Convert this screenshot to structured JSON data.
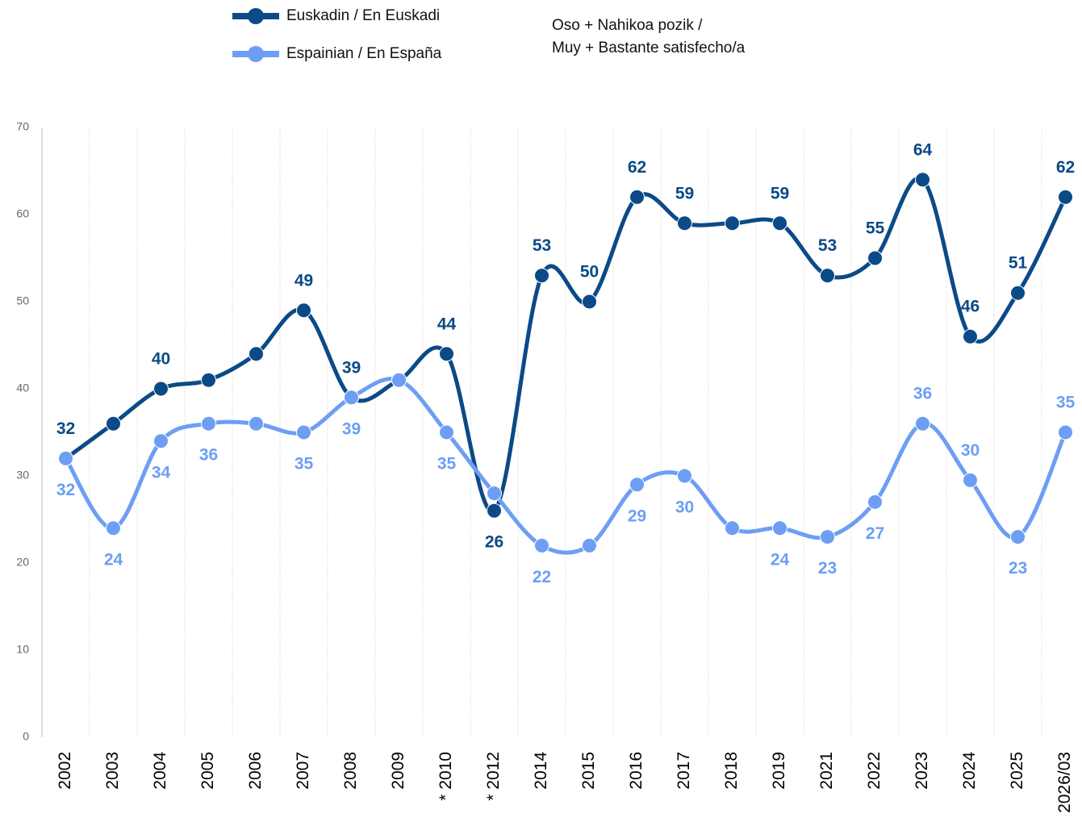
{
  "chart_data": {
    "type": "line",
    "subtitle": [
      "Oso + Nahikoa pozik /",
      "Muy + Bastante satisfecho/a"
    ],
    "categories": [
      "2002",
      "2003",
      "2004",
      "2005",
      "2006",
      "2007",
      "2008",
      "2009",
      "* 2010",
      "* 2012",
      "2014",
      "2015",
      "2016",
      "2017",
      "2018",
      "2019",
      "2021",
      "2022",
      "2023",
      "2024",
      "2025",
      "2026/03"
    ],
    "series": [
      {
        "name": "Euskadin / En Euskadi",
        "color": "#0b4a86",
        "values": [
          32,
          36,
          40,
          41,
          44,
          49,
          39,
          41,
          44,
          26,
          53,
          50,
          62,
          59,
          59,
          59,
          53,
          55,
          64,
          46,
          51,
          62
        ],
        "value_labels": [
          "32",
          null,
          "40",
          null,
          null,
          "49",
          "39",
          null,
          "44",
          "26",
          "53",
          "50",
          "62",
          "59",
          null,
          "59",
          "53",
          "55",
          "64",
          "46",
          "51",
          "62"
        ]
      },
      {
        "name": "Espainian / En España",
        "color": "#6d9ef4",
        "values": [
          32,
          24,
          34,
          36,
          36,
          35,
          39,
          41,
          35,
          28,
          22,
          22,
          29,
          30,
          24,
          24,
          23,
          27,
          36,
          29.5,
          23,
          35
        ],
        "value_labels": [
          "32",
          "24",
          "34",
          "36",
          null,
          "35",
          "39",
          null,
          "35",
          null,
          "22",
          null,
          "29",
          "30",
          null,
          "24",
          "23",
          "27",
          "36",
          "30",
          "23",
          "35"
        ]
      }
    ],
    "ylim": [
      0,
      70
    ],
    "yticks": [
      0,
      10,
      20,
      30,
      40,
      50,
      60,
      70
    ]
  }
}
